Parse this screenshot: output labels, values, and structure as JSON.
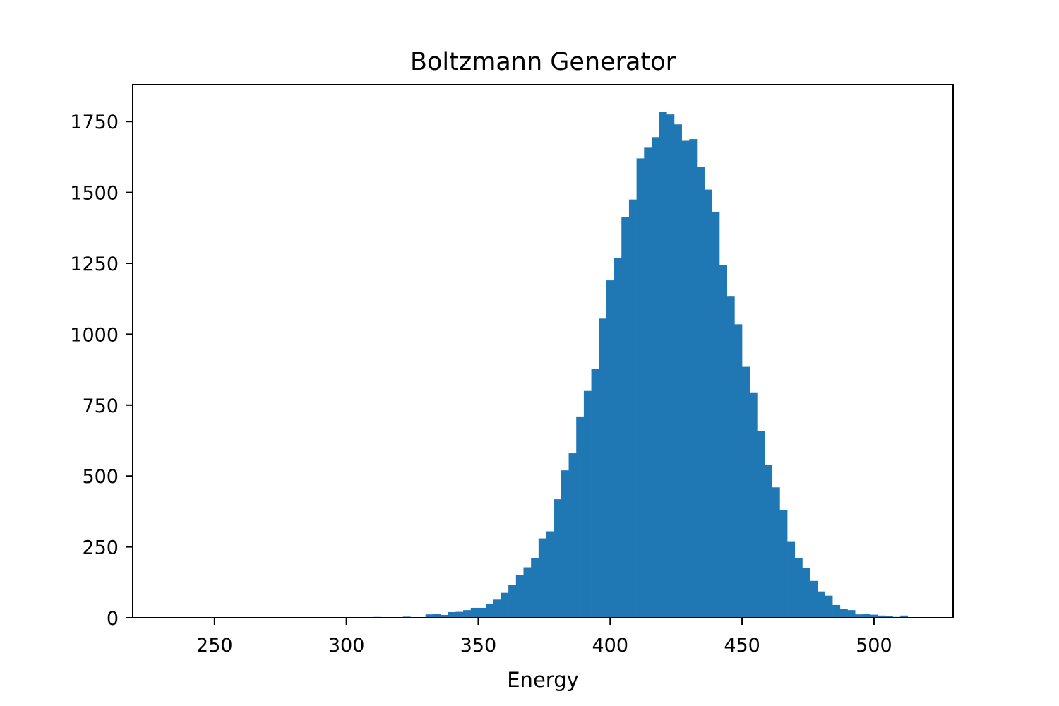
{
  "chart_data": {
    "type": "bar",
    "subtype": "histogram",
    "title": "Boltzmann Generator",
    "xlabel": "Energy",
    "ylabel": "",
    "xlim": [
      219,
      530
    ],
    "ylim": [
      0,
      1880
    ],
    "x_ticks": [
      250,
      300,
      350,
      400,
      450,
      500
    ],
    "y_ticks": [
      0,
      250,
      500,
      750,
      1000,
      1250,
      1500,
      1750
    ],
    "grid": false,
    "legend": "none",
    "color": "#1f77b4",
    "bins": {
      "start": 230.0,
      "width": 2.857,
      "counts": [
        0,
        0,
        0,
        0,
        0,
        0,
        0,
        0,
        0,
        0,
        0,
        0,
        0,
        0,
        0,
        0,
        0,
        0,
        0,
        0,
        0,
        0,
        0,
        0,
        0,
        0,
        0,
        1,
        3,
        1,
        2,
        1,
        4,
        2,
        1,
        12,
        13,
        10,
        20,
        21,
        27,
        35,
        35,
        50,
        64,
        88,
        115,
        150,
        178,
        210,
        280,
        305,
        418,
        520,
        580,
        710,
        800,
        878,
        1055,
        1190,
        1270,
        1413,
        1475,
        1620,
        1660,
        1695,
        1785,
        1775,
        1740,
        1682,
        1688,
        1590,
        1510,
        1432,
        1245,
        1135,
        1035,
        885,
        795,
        660,
        538,
        460,
        380,
        270,
        210,
        175,
        130,
        93,
        78,
        45,
        30,
        27,
        12,
        14,
        11,
        8,
        6,
        3,
        8,
        2
      ]
    }
  }
}
